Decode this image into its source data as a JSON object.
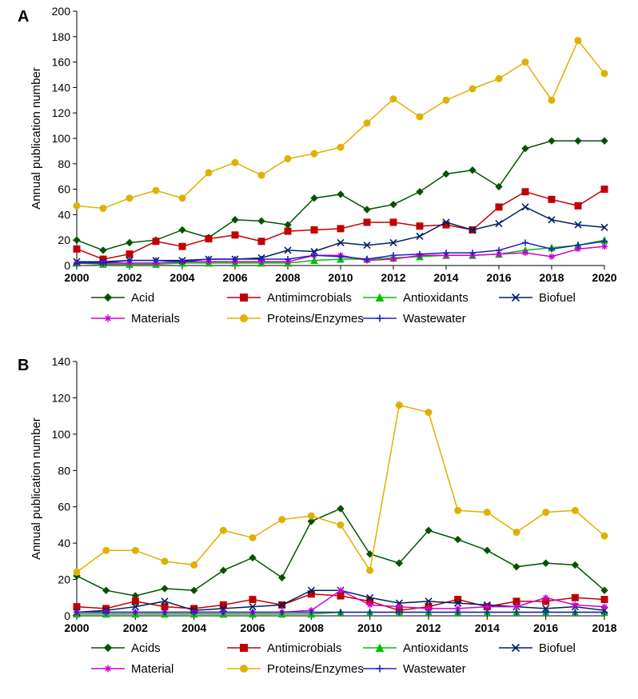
{
  "panelA": {
    "label": "A",
    "type": "line",
    "ylabel": "Annual publication number",
    "ylim": [
      0,
      200
    ],
    "ytick_step": 20,
    "x_values": [
      2000,
      2001,
      2002,
      2003,
      2004,
      2005,
      2006,
      2007,
      2008,
      2009,
      2010,
      2011,
      2012,
      2013,
      2014,
      2015,
      2016,
      2017,
      2018,
      2019,
      2020
    ],
    "x_ticks": [
      2000,
      2002,
      2004,
      2006,
      2008,
      2010,
      2012,
      2014,
      2016,
      2018,
      2020
    ],
    "series": [
      {
        "name": "Acid",
        "color": "#005400",
        "marker": "diamond",
        "values": [
          20,
          12,
          18,
          20,
          28,
          22,
          36,
          35,
          32,
          53,
          56,
          44,
          48,
          58,
          72,
          75,
          62,
          92,
          98,
          98,
          98
        ]
      },
      {
        "name": "Antimimcrobials",
        "color": "#c00000",
        "marker": "square",
        "values": [
          13,
          5,
          9,
          19,
          15,
          21,
          24,
          19,
          27,
          28,
          29,
          34,
          34,
          31,
          32,
          28,
          46,
          58,
          52,
          47,
          60
        ]
      },
      {
        "name": "Antioxidants",
        "color": "#00c000",
        "marker": "triangle",
        "values": [
          2,
          1,
          1,
          1,
          2,
          2,
          2,
          2,
          2,
          4,
          5,
          5,
          6,
          7,
          8,
          8,
          9,
          12,
          14,
          16,
          20
        ]
      },
      {
        "name": "Biofuel",
        "color": "#002060",
        "marker": "x",
        "values": [
          3,
          3,
          4,
          4,
          4,
          5,
          5,
          6,
          12,
          11,
          18,
          16,
          18,
          23,
          34,
          28,
          33,
          46,
          36,
          32,
          30
        ]
      },
      {
        "name": "Materials",
        "color": "#d000d0",
        "marker": "asterisk",
        "values": [
          2,
          2,
          2,
          2,
          3,
          3,
          3,
          3,
          3,
          8,
          8,
          4,
          5,
          8,
          8,
          8,
          9,
          10,
          7,
          13,
          15
        ]
      },
      {
        "name": "Proteins/Enzymes",
        "color": "#e0b000",
        "marker": "circle",
        "values": [
          47,
          45,
          53,
          59,
          53,
          73,
          81,
          71,
          84,
          88,
          93,
          112,
          131,
          117,
          130,
          139,
          147,
          160,
          130,
          177,
          151
        ]
      },
      {
        "name": "Wastewater",
        "color": "#2020c0",
        "marker": "plus",
        "values": [
          2,
          2,
          4,
          4,
          3,
          5,
          5,
          5,
          5,
          8,
          7,
          5,
          8,
          9,
          10,
          10,
          12,
          18,
          13,
          16,
          19
        ]
      }
    ],
    "background_color": "#ffffff",
    "axis_color": "#000000",
    "label_fontsize": 14,
    "legend_fontsize": 15,
    "axis_title_fontsize": 15
  },
  "panelB": {
    "label": "B",
    "type": "line",
    "ylabel": "Annual publication number",
    "ylim": [
      0,
      140
    ],
    "ytick_step": 20,
    "x_values": [
      2000,
      2001,
      2002,
      2003,
      2004,
      2005,
      2006,
      2007,
      2008,
      2009,
      2010,
      2011,
      2012,
      2013,
      2014,
      2015,
      2016,
      2017,
      2018
    ],
    "x_ticks": [
      2000,
      2002,
      2004,
      2006,
      2008,
      2010,
      2012,
      2014,
      2016,
      2018
    ],
    "series": [
      {
        "name": "Acids",
        "color": "#005400",
        "marker": "diamond",
        "values": [
          22,
          14,
          11,
          15,
          14,
          25,
          32,
          21,
          52,
          59,
          34,
          29,
          47,
          42,
          36,
          27,
          29,
          28,
          14
        ]
      },
      {
        "name": "Antimicrobials",
        "color": "#c00000",
        "marker": "square",
        "values": [
          5,
          4,
          8,
          5,
          4,
          6,
          9,
          6,
          12,
          11,
          8,
          3,
          5,
          9,
          5,
          8,
          8,
          10,
          9
        ]
      },
      {
        "name": "Antioxidants",
        "color": "#00c000",
        "marker": "triangle",
        "values": [
          1,
          1,
          1,
          1,
          1,
          1,
          1,
          1,
          1,
          2,
          2,
          2,
          2,
          2,
          2,
          2,
          2,
          2,
          2
        ]
      },
      {
        "name": "Biofuel",
        "color": "#002060",
        "marker": "x",
        "values": [
          2,
          3,
          5,
          8,
          3,
          4,
          5,
          6,
          14,
          14,
          10,
          7,
          8,
          7,
          6,
          5,
          4,
          5,
          3
        ]
      },
      {
        "name": "Material",
        "color": "#d000d0",
        "marker": "asterisk",
        "values": [
          2,
          2,
          2,
          2,
          2,
          2,
          2,
          2,
          3,
          14,
          6,
          5,
          4,
          4,
          5,
          5,
          10,
          6,
          5
        ]
      },
      {
        "name": "Proteins/Enzymes",
        "color": "#e0b000",
        "marker": "circle",
        "values": [
          24,
          36,
          36,
          30,
          28,
          47,
          43,
          53,
          55,
          50,
          25,
          116,
          112,
          58,
          57,
          46,
          57,
          58,
          44
        ]
      },
      {
        "name": "Wastewater",
        "color": "#2020c0",
        "marker": "plus",
        "values": [
          2,
          2,
          2,
          2,
          2,
          2,
          2,
          2,
          2,
          2,
          2,
          2,
          2,
          2,
          2,
          2,
          2,
          2,
          2
        ]
      }
    ],
    "background_color": "#ffffff",
    "axis_color": "#000000",
    "label_fontsize": 14,
    "legend_fontsize": 15,
    "axis_title_fontsize": 15
  }
}
